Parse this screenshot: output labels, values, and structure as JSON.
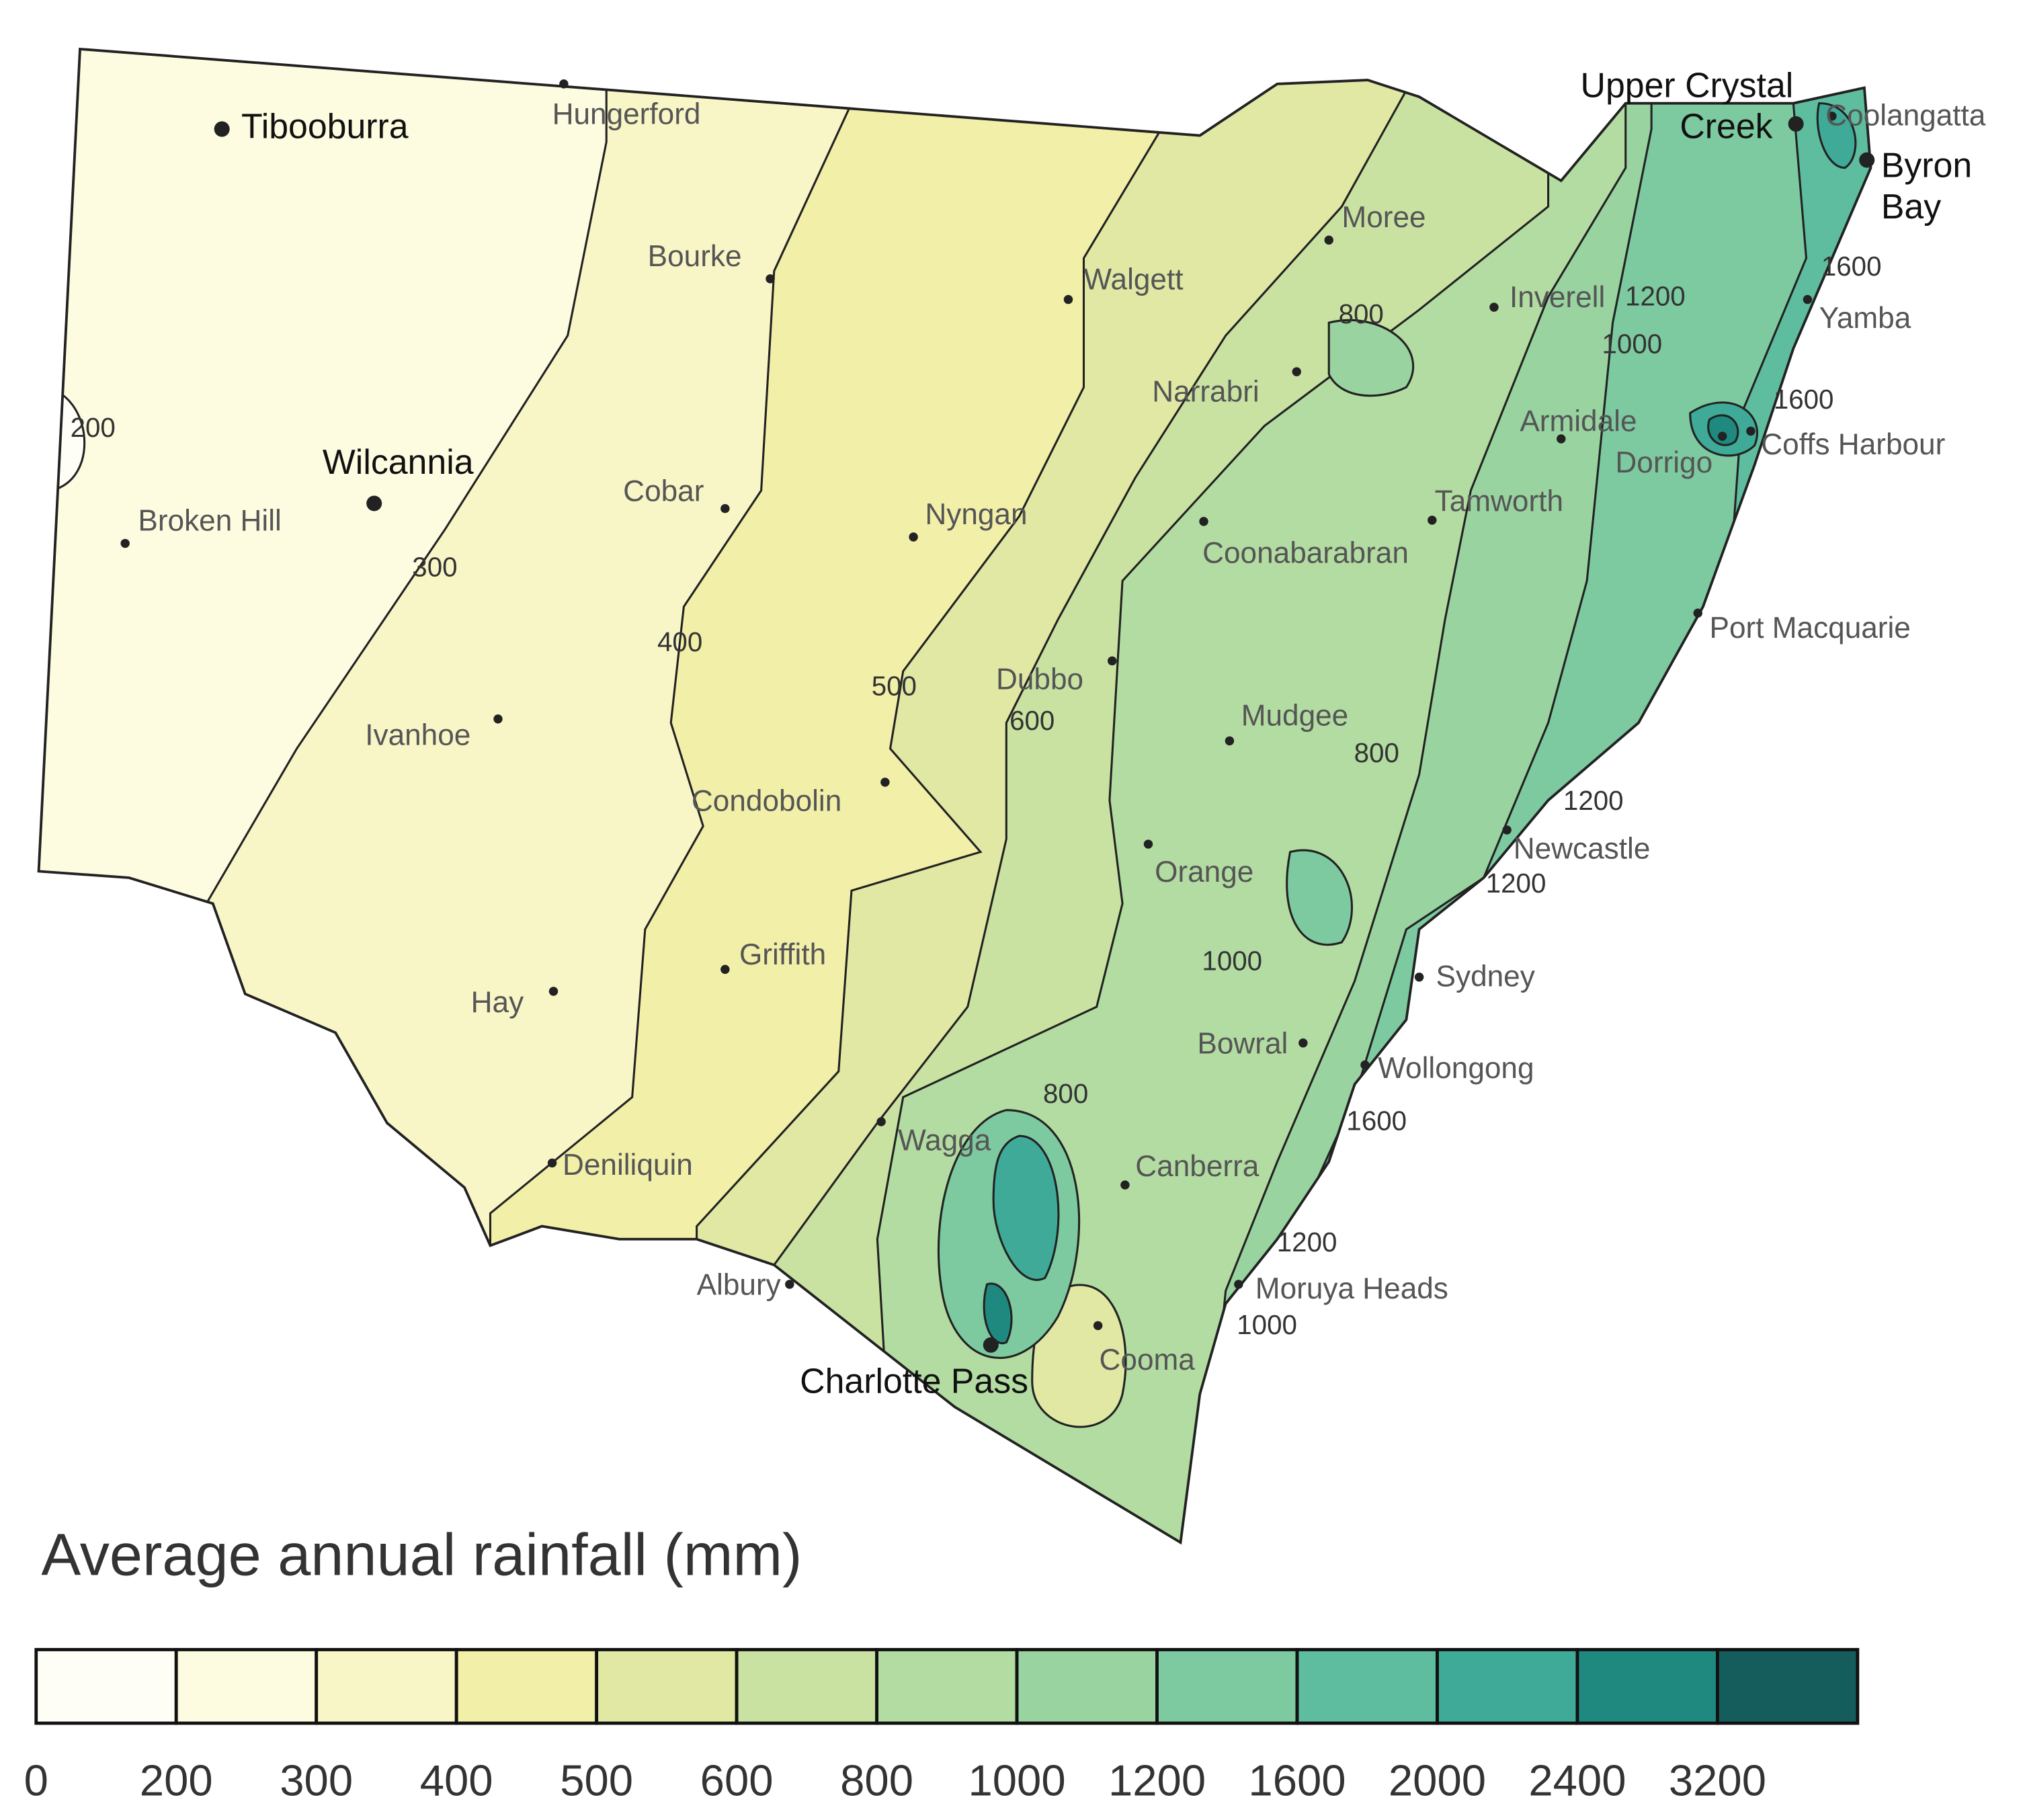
{
  "map": {
    "places": [
      [
        "Tibooburra"
      ],
      [
        "Hungerford"
      ],
      [
        "Bourke"
      ],
      [
        "Walgett"
      ],
      [
        "Moree"
      ],
      [
        "Inverell"
      ],
      [
        "Narrabri"
      ],
      [
        "Armidale"
      ],
      [
        "Coffs Harbour"
      ],
      [
        "Dorrigo"
      ],
      [
        "Tamworth"
      ],
      [
        "Coonabarabran"
      ],
      [
        "Nyngan"
      ],
      [
        "Cobar"
      ],
      [
        "Wilcannia"
      ],
      [
        "Broken Hill"
      ],
      [
        "Ivanhoe"
      ],
      [
        "Dubbo"
      ],
      [
        "Mudgee"
      ],
      [
        "Condobolin"
      ],
      [
        "Orange"
      ],
      [
        "Port Macquarie"
      ],
      [
        "Newcastle"
      ],
      [
        "Griffith"
      ],
      [
        "Hay"
      ],
      [
        "Sydney"
      ],
      [
        "Bowral"
      ],
      [
        "Wollongong"
      ],
      [
        "Wagga"
      ],
      [
        "Canberra"
      ],
      [
        "Deniliquin"
      ],
      [
        "Albury"
      ],
      [
        "Moruya Heads"
      ],
      [
        "Cooma"
      ],
      [
        "Charlotte Pass"
      ],
      [
        "Upper Crystal",
        "Creek"
      ],
      [
        "Coolangatta"
      ],
      [
        "Byron",
        "Bay"
      ],
      [
        "Yamba"
      ]
    ],
    "contour_labels": [
      200,
      300,
      400,
      500,
      600,
      800,
      1200,
      1000,
      1600,
      1600,
      800,
      1200,
      1200,
      1000,
      800,
      1600,
      1200,
      1000
    ]
  },
  "legend": {
    "title": "Average annual rainfall (mm)",
    "ticks": [
      0,
      200,
      300,
      400,
      500,
      600,
      800,
      1000,
      1200,
      1600,
      2000,
      2400,
      3200
    ],
    "colors": [
      "#fffef6",
      "#fdfbe0",
      "#f8f5c6",
      "#f1efa8",
      "#e0e8a4",
      "#c9e2a1",
      "#b2dca1",
      "#98d3a0",
      "#7dc9a0",
      "#5ebd9f",
      "#3eaa97",
      "#1f8980",
      "#145d5c"
    ]
  }
}
